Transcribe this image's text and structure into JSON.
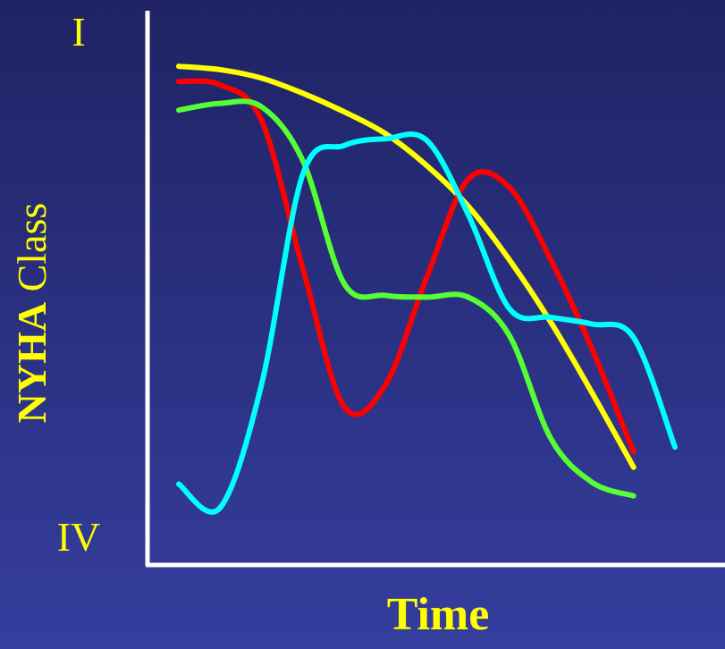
{
  "chart_data": {
    "type": "line",
    "xlabel": "Time",
    "ylabel": [
      "NYHA",
      "Class"
    ],
    "categories": [
      null,
      null,
      null,
      null,
      null,
      null,
      null,
      null,
      null,
      null,
      null,
      null,
      null
    ],
    "ylim": [
      0.85,
      4.14
    ],
    "y_inverted": true,
    "yticks": [
      {
        "value": 1,
        "label": "I"
      },
      {
        "value": 4,
        "label": "IV"
      }
    ],
    "grid": false,
    "series": [
      {
        "color": "#ffff00",
        "values": [
          1.18,
          1.2,
          1.25,
          1.34,
          1.45,
          1.58,
          1.77,
          2.01,
          2.33,
          2.7,
          3.12,
          3.56,
          null
        ]
      },
      {
        "color": "#ff0000",
        "values": [
          1.27,
          1.29,
          1.5,
          2.38,
          3.2,
          3.07,
          2.43,
          1.85,
          1.9,
          2.33,
          2.86,
          3.47,
          null
        ]
      },
      {
        "color": "#55ff33",
        "values": [
          1.44,
          1.4,
          1.42,
          1.74,
          2.47,
          2.54,
          2.55,
          2.55,
          2.78,
          3.39,
          3.65,
          3.73,
          null
        ]
      },
      {
        "color": "#00ffff",
        "values": [
          3.66,
          3.8,
          3.07,
          1.82,
          1.65,
          1.61,
          1.62,
          2.06,
          2.62,
          2.67,
          2.71,
          2.79,
          3.44
        ]
      }
    ]
  }
}
